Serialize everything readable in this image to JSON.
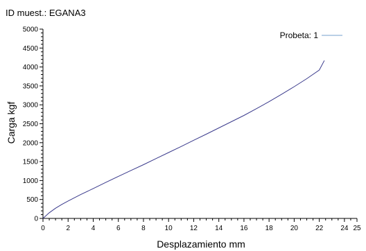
{
  "chart_data": {
    "type": "line",
    "title": "ID muest.: EGANA3",
    "xlabel": "Desplazamiento mm",
    "ylabel": "Carga kgf",
    "xlim": [
      0,
      25
    ],
    "ylim": [
      0,
      5000
    ],
    "xticks": [
      "0",
      "2",
      "4",
      "6",
      "8",
      "10",
      "12",
      "14",
      "16",
      "18",
      "20",
      "22",
      "24",
      "25"
    ],
    "yticks": [
      "0",
      "500",
      "1000",
      "1500",
      "2000",
      "2500",
      "3000",
      "3500",
      "4000",
      "4500",
      "5000"
    ],
    "grid": false,
    "legend": {
      "position": "top-right"
    },
    "series": [
      {
        "name": "Probeta: 1",
        "color": "#3a3a8c",
        "legend_color": "#8fb4d6",
        "x": [
          0,
          0.5,
          1,
          1.5,
          2,
          3,
          4,
          5,
          6,
          7,
          8,
          9,
          10,
          11,
          12,
          13,
          14,
          15,
          16,
          17,
          18,
          19,
          20,
          21,
          22,
          22.4
        ],
        "y": [
          0,
          150,
          270,
          370,
          460,
          630,
          790,
          950,
          1110,
          1265,
          1420,
          1580,
          1740,
          1900,
          2065,
          2225,
          2390,
          2555,
          2720,
          2900,
          3085,
          3280,
          3480,
          3690,
          3920,
          4170
        ]
      }
    ]
  }
}
